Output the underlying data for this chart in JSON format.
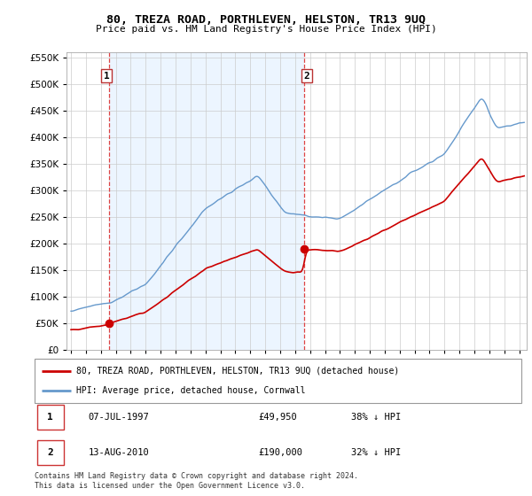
{
  "title": "80, TREZA ROAD, PORTHLEVEN, HELSTON, TR13 9UQ",
  "subtitle": "Price paid vs. HM Land Registry's House Price Index (HPI)",
  "ylim": [
    0,
    560000
  ],
  "yticks": [
    0,
    50000,
    100000,
    150000,
    200000,
    250000,
    300000,
    350000,
    400000,
    450000,
    500000,
    550000
  ],
  "sale1_x": 1997.54,
  "sale1_y": 49950,
  "sale2_x": 2010.62,
  "sale2_y": 190000,
  "red_line_color": "#cc0000",
  "blue_line_color": "#6699cc",
  "dashed_line_color": "#dd4444",
  "grid_color": "#cccccc",
  "bg_shade_color": "#ddeeff",
  "background_color": "#ffffff",
  "legend_line1": "80, TREZA ROAD, PORTHLEVEN, HELSTON, TR13 9UQ (detached house)",
  "legend_line2": "HPI: Average price, detached house, Cornwall",
  "table_row1_num": "1",
  "table_row1_date": "07-JUL-1997",
  "table_row1_price": "£49,950",
  "table_row1_hpi": "38% ↓ HPI",
  "table_row2_num": "2",
  "table_row2_date": "13-AUG-2010",
  "table_row2_price": "£190,000",
  "table_row2_hpi": "32% ↓ HPI",
  "footer": "Contains HM Land Registry data © Crown copyright and database right 2024.\nThis data is licensed under the Open Government Licence v3.0.",
  "xmin": 1994.7,
  "xmax": 2025.5
}
